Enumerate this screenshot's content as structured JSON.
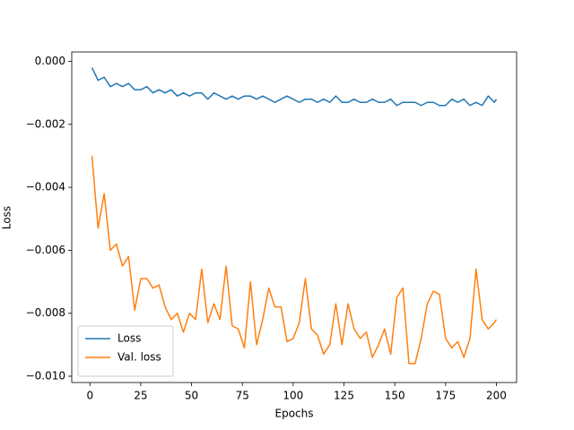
{
  "chart_data": {
    "type": "line",
    "xlabel": "Epochs",
    "ylabel": "Loss",
    "x": [
      1,
      4,
      7,
      10,
      13,
      16,
      19,
      22,
      25,
      28,
      31,
      34,
      37,
      40,
      43,
      46,
      49,
      52,
      55,
      58,
      61,
      64,
      67,
      70,
      73,
      76,
      79,
      82,
      85,
      88,
      91,
      94,
      97,
      100,
      103,
      106,
      109,
      112,
      115,
      118,
      121,
      124,
      127,
      130,
      133,
      136,
      139,
      142,
      145,
      148,
      151,
      154,
      157,
      160,
      163,
      166,
      169,
      172,
      175,
      178,
      181,
      184,
      187,
      190,
      193,
      196,
      199,
      200
    ],
    "series": [
      {
        "name": "Loss",
        "color": "#1f77b4",
        "values": [
          -0.0002,
          -0.0006,
          -0.0005,
          -0.0008,
          -0.0007,
          -0.0008,
          -0.0007,
          -0.0009,
          -0.0009,
          -0.0008,
          -0.001,
          -0.0009,
          -0.001,
          -0.0009,
          -0.0011,
          -0.001,
          -0.0011,
          -0.001,
          -0.001,
          -0.0012,
          -0.001,
          -0.0011,
          -0.0012,
          -0.0011,
          -0.0012,
          -0.0011,
          -0.0011,
          -0.0012,
          -0.0011,
          -0.0012,
          -0.0013,
          -0.0012,
          -0.0011,
          -0.0012,
          -0.0013,
          -0.0012,
          -0.0012,
          -0.0013,
          -0.0012,
          -0.0013,
          -0.0011,
          -0.0013,
          -0.0013,
          -0.0012,
          -0.0013,
          -0.0013,
          -0.0012,
          -0.0013,
          -0.0013,
          -0.0012,
          -0.0014,
          -0.0013,
          -0.0013,
          -0.0013,
          -0.0014,
          -0.0013,
          -0.0013,
          -0.0014,
          -0.0014,
          -0.0012,
          -0.0013,
          -0.0012,
          -0.0014,
          -0.0013,
          -0.0014,
          -0.0011,
          -0.0013,
          -0.0012
        ]
      },
      {
        "name": "Val. loss",
        "color": "#ff7f0e",
        "values": [
          -0.003,
          -0.0053,
          -0.0042,
          -0.006,
          -0.0058,
          -0.0065,
          -0.0062,
          -0.0079,
          -0.0069,
          -0.0069,
          -0.0072,
          -0.0071,
          -0.0078,
          -0.0082,
          -0.008,
          -0.0086,
          -0.008,
          -0.0082,
          -0.0066,
          -0.0083,
          -0.0077,
          -0.0082,
          -0.0065,
          -0.0084,
          -0.0085,
          -0.0091,
          -0.007,
          -0.009,
          -0.0082,
          -0.0072,
          -0.0078,
          -0.0078,
          -0.0089,
          -0.0088,
          -0.0083,
          -0.0069,
          -0.0085,
          -0.0087,
          -0.0093,
          -0.009,
          -0.0077,
          -0.009,
          -0.0077,
          -0.0085,
          -0.0088,
          -0.0086,
          -0.0094,
          -0.009,
          -0.0085,
          -0.0093,
          -0.0075,
          -0.0072,
          -0.0096,
          -0.0096,
          -0.0088,
          -0.0077,
          -0.0073,
          -0.0074,
          -0.0088,
          -0.0091,
          -0.0089,
          -0.0094,
          -0.0088,
          -0.0066,
          -0.0082,
          -0.0085,
          -0.0083,
          -0.0082
        ]
      }
    ],
    "xlim": [
      -8.95,
      209.95
    ],
    "xticks": [
      0,
      25,
      50,
      75,
      100,
      125,
      150,
      175,
      200
    ],
    "ylim": [
      -0.0102,
      0.0003
    ],
    "yticks": [
      {
        "value": -0.01,
        "label": "−0.010"
      },
      {
        "value": -0.008,
        "label": "−0.008"
      },
      {
        "value": -0.006,
        "label": "−0.006"
      },
      {
        "value": -0.004,
        "label": "−0.004"
      },
      {
        "value": -0.002,
        "label": "−0.002"
      },
      {
        "value": 0,
        "label": "0.000"
      }
    ],
    "legend": "lower left",
    "grid": false
  }
}
